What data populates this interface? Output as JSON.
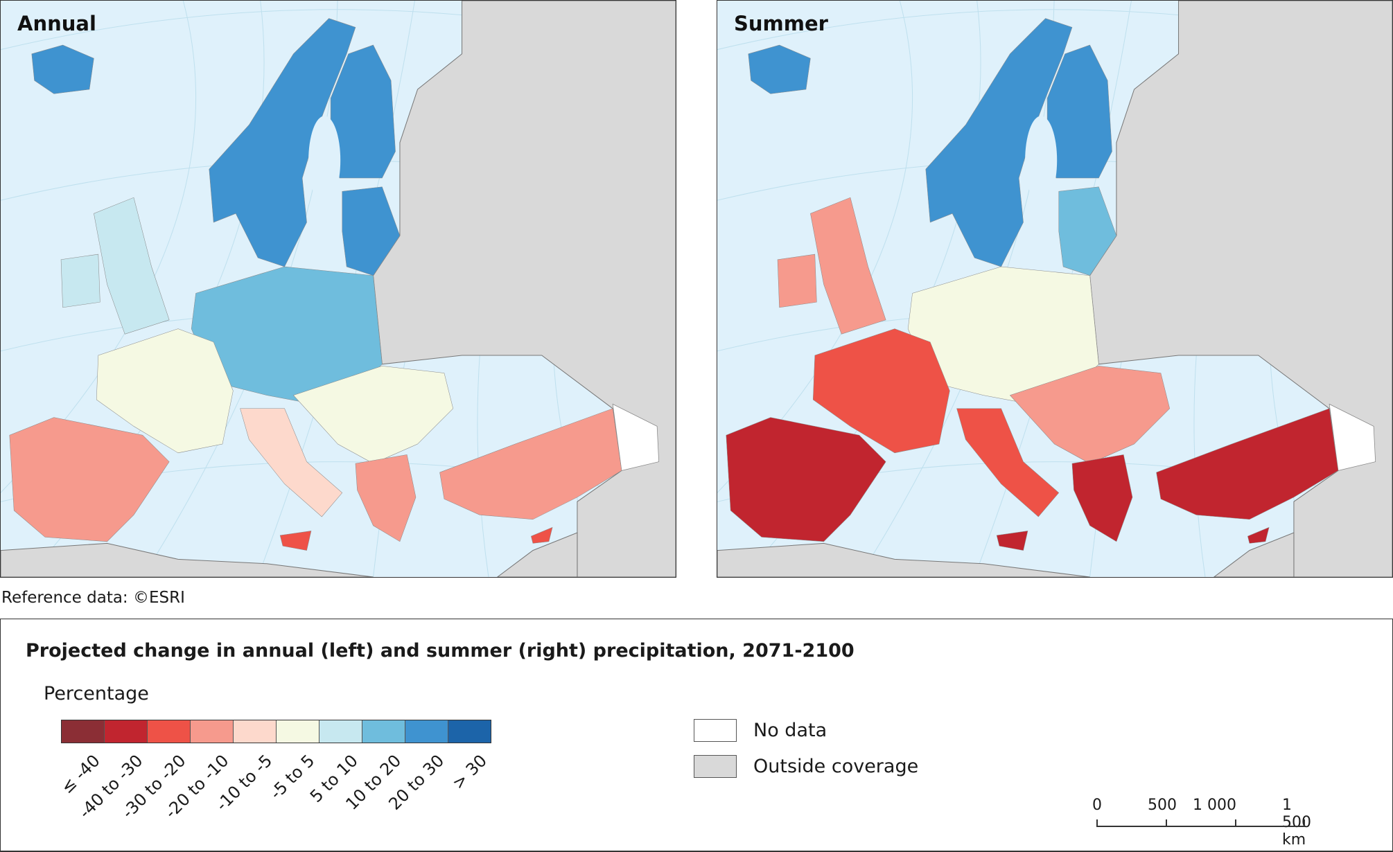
{
  "maps": [
    {
      "title": "Annual",
      "classes": [
        "20 to 30",
        "20 to 30",
        "20 to 30",
        "20 to 30",
        "10 to 20",
        "-5 to 5",
        "-20 to -10",
        "-10 to -5",
        "-30 to -20",
        "-5 to 5",
        "-20 to -10",
        "-20 to -10",
        "5 to 10",
        "5 to 10",
        "-30 to -20"
      ]
    },
    {
      "title": "Summer",
      "classes": [
        "20 to 30",
        "20 to 30",
        "20 to 30",
        "10 to 20",
        "-5 to 5",
        "-30 to -20",
        "-40 to -30",
        "-30 to -20",
        "-40 to -30",
        "-20 to -10",
        "-40 to -30",
        "-40 to -30",
        "-20 to -10",
        "-20 to -10",
        "-40 to -30"
      ]
    }
  ],
  "colors": {
    "sea": "#dff1fb",
    "outside_coverage": "#d9d9d9",
    "no_data": "#ffffff"
  },
  "reference": "Reference data: ©ESRI",
  "legend": {
    "title": "Projected change in annual (left) and summer (right) precipitation, 2071-2100",
    "unit": "Percentage",
    "classes": [
      {
        "label": "≤ -40",
        "color": "#8b2e35"
      },
      {
        "label": "-40 to -30",
        "color": "#c1252f"
      },
      {
        "label": "-30 to -20",
        "color": "#ee5247"
      },
      {
        "label": "-20 to -10",
        "color": "#f69a8d"
      },
      {
        "label": "-10 to -5",
        "color": "#fdd9cc"
      },
      {
        "label": "-5 to 5",
        "color": "#f5f9e3"
      },
      {
        "label": "5 to 10",
        "color": "#c7e8f0"
      },
      {
        "label": "10 to 20",
        "color": "#6fbddd"
      },
      {
        "label": "20 to 30",
        "color": "#3f93d0"
      },
      {
        "label": "> 30",
        "color": "#1c64a9"
      }
    ],
    "no_data": "No data",
    "outside_coverage": "Outside coverage"
  },
  "scalebar": {
    "labels": [
      "0",
      "500",
      "1 000",
      "1 500 km"
    ]
  }
}
